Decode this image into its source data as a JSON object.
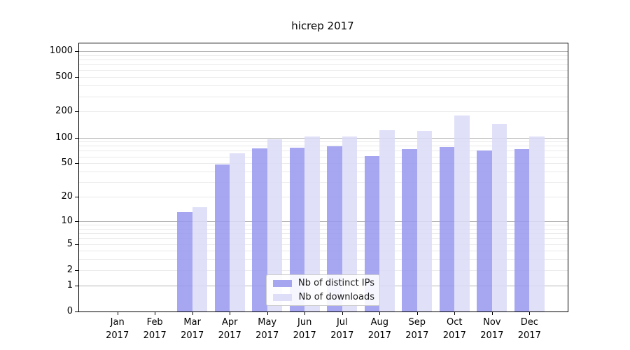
{
  "title": "hicrep 2017",
  "legend": {
    "items": [
      {
        "key": "ips",
        "label": "Nb of distinct IPs"
      },
      {
        "key": "downloads",
        "label": "Nb of downloads"
      }
    ]
  },
  "colors": {
    "ips": "#a5a5f0",
    "downloads": "#dedef9",
    "ips_bar": "rgba(152,152,238,0.85)",
    "downloads_bar": "rgba(218,218,248,0.85)",
    "major_grid": "#b3b3b3",
    "minor_grid": "#eaeaea",
    "axis": "#000000",
    "legend_border": "#cccccc"
  },
  "chart_data": {
    "type": "bar",
    "title": "hicrep 2017",
    "categories": [
      "Jan 2017",
      "Feb 2017",
      "Mar 2017",
      "Apr 2017",
      "May 2017",
      "Jun 2017",
      "Jul 2017",
      "Aug 2017",
      "Sep 2017",
      "Oct 2017",
      "Nov 2017",
      "Dec 2017"
    ],
    "series": [
      {
        "name": "Nb of distinct IPs",
        "values": [
          0,
          0,
          13,
          48,
          75,
          76,
          79,
          61,
          73,
          77,
          70,
          73
        ]
      },
      {
        "name": "Nb of downloads",
        "values": [
          0,
          0,
          15,
          65,
          95,
          102,
          102,
          122,
          120,
          180,
          144,
          103
        ]
      }
    ],
    "yscale": "log1p",
    "yticks": [
      0,
      1,
      2,
      5,
      10,
      20,
      50,
      100,
      200,
      500,
      1000
    ],
    "minor_gridlines": [
      2,
      3,
      4,
      5,
      6,
      7,
      8,
      9,
      20,
      30,
      40,
      50,
      60,
      70,
      80,
      90,
      200,
      300,
      400,
      500,
      600,
      700,
      800,
      900
    ],
    "major_gridlines": [
      1,
      10,
      100,
      1000
    ],
    "ylim": [
      0,
      1225
    ],
    "grid": true,
    "legend_position": "lower center"
  }
}
